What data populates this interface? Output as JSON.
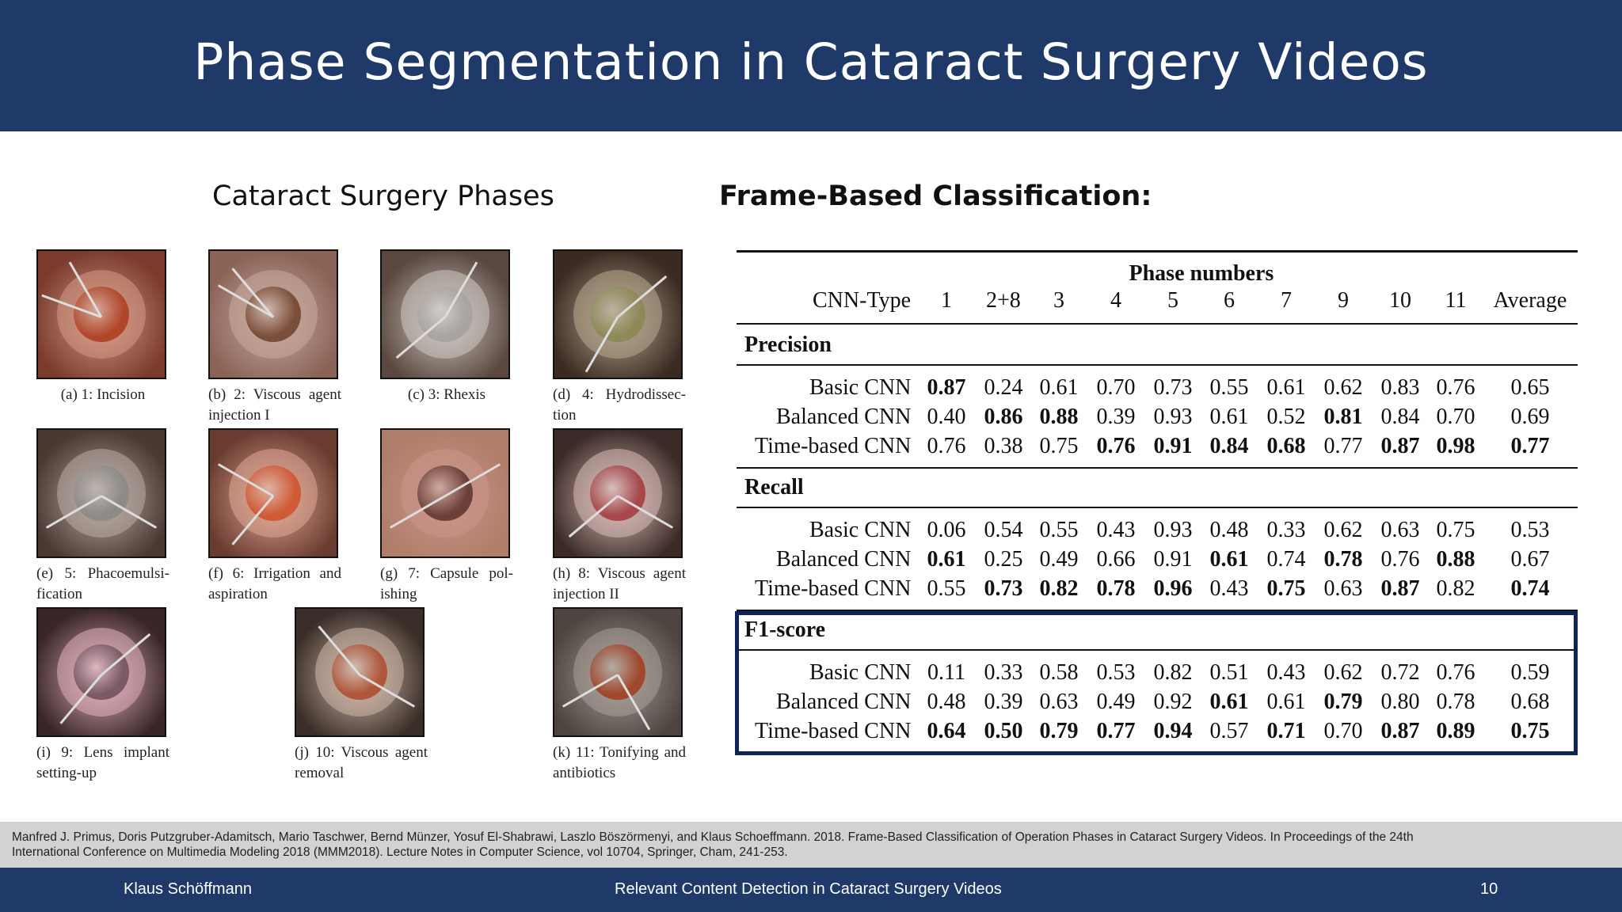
{
  "slide": {
    "title": "Phase Segmentation in Cataract Surgery Videos",
    "left_heading": "Cataract Surgery Phases",
    "right_heading": "Frame-Based Classification:"
  },
  "phases": [
    {
      "caption": "(a) 1: Incision",
      "colors": {
        "bg": "#7a3b2c",
        "eye": "#b0462a",
        "ring": "#d49a86"
      }
    },
    {
      "caption": "(b) 2: Viscous agent injection I",
      "colors": {
        "bg": "#8a6356",
        "eye": "#7a4e38",
        "ring": "#c9a9a0"
      }
    },
    {
      "caption": "(c) 3: Rhexis",
      "colors": {
        "bg": "#5a4840",
        "eye": "#a8a4a0",
        "ring": "#cfc8c2"
      }
    },
    {
      "caption": "(d) 4: Hydrodissec- tion",
      "colors": {
        "bg": "#3a2a22",
        "eye": "#8c8a58",
        "ring": "#b8a890"
      }
    },
    {
      "caption": "(e) 5: Phacoemulsi- fication",
      "colors": {
        "bg": "#4a3832",
        "eye": "#8d8a88",
        "ring": "#b9aca4"
      }
    },
    {
      "caption": "(f) 6: Irrigation and aspiration",
      "colors": {
        "bg": "#6a3c30",
        "eye": "#d05a36",
        "ring": "#e0a896"
      }
    },
    {
      "caption": "(g) 7: Capsule pol- ishing",
      "colors": {
        "bg": "#b07d68",
        "eye": "#6a4038",
        "ring": "#c8968a"
      }
    },
    {
      "caption": "(h) 8: Viscous agent injection II",
      "colors": {
        "bg": "#3c2a26",
        "eye": "#a8484a",
        "ring": "#d8bcb8"
      }
    },
    {
      "caption": "(i) 9: Lens implant setting-up",
      "colors": {
        "bg": "#3a2626",
        "eye": "#7a5a64",
        "ring": "#e0b0bc"
      }
    },
    {
      "caption": "(j) 10: Viscous agent removal",
      "colors": {
        "bg": "#3a2e28",
        "eye": "#b0563a",
        "ring": "#cfb8aa"
      }
    },
    {
      "caption": "(k) 11: Tonifying and antibiotics",
      "colors": {
        "bg": "#4e4440",
        "eye": "#a0482c",
        "ring": "#a89e98"
      }
    }
  ],
  "table": {
    "group_header": "Phase numbers",
    "columns": [
      "CNN-Type",
      "1",
      "2+8",
      "3",
      "4",
      "5",
      "6",
      "7",
      "9",
      "10",
      "11",
      "Average"
    ],
    "sections": [
      {
        "name": "Precision",
        "rows": [
          {
            "type": "Basic CNN",
            "values": [
              "0.87",
              "0.24",
              "0.61",
              "0.70",
              "0.73",
              "0.55",
              "0.61",
              "0.62",
              "0.83",
              "0.76",
              "0.65"
            ],
            "bold": [
              0
            ]
          },
          {
            "type": "Balanced CNN",
            "values": [
              "0.40",
              "0.86",
              "0.88",
              "0.39",
              "0.93",
              "0.61",
              "0.52",
              "0.81",
              "0.84",
              "0.70",
              "0.69"
            ],
            "bold": [
              1,
              2,
              7
            ]
          },
          {
            "type": "Time-based CNN",
            "values": [
              "0.76",
              "0.38",
              "0.75",
              "0.76",
              "0.91",
              "0.84",
              "0.68",
              "0.77",
              "0.87",
              "0.98",
              "0.77"
            ],
            "bold": [
              3,
              4,
              5,
              6,
              8,
              9,
              10
            ]
          }
        ]
      },
      {
        "name": "Recall",
        "rows": [
          {
            "type": "Basic CNN",
            "values": [
              "0.06",
              "0.54",
              "0.55",
              "0.43",
              "0.93",
              "0.48",
              "0.33",
              "0.62",
              "0.63",
              "0.75",
              "0.53"
            ],
            "bold": []
          },
          {
            "type": "Balanced CNN",
            "values": [
              "0.61",
              "0.25",
              "0.49",
              "0.66",
              "0.91",
              "0.61",
              "0.74",
              "0.78",
              "0.76",
              "0.88",
              "0.67"
            ],
            "bold": [
              0,
              5,
              7,
              9
            ]
          },
          {
            "type": "Time-based CNN",
            "values": [
              "0.55",
              "0.73",
              "0.82",
              "0.78",
              "0.96",
              "0.43",
              "0.75",
              "0.63",
              "0.87",
              "0.82",
              "0.74"
            ],
            "bold": [
              1,
              2,
              3,
              4,
              6,
              8,
              10
            ]
          }
        ]
      },
      {
        "name": "F1-score",
        "rows": [
          {
            "type": "Basic CNN",
            "values": [
              "0.11",
              "0.33",
              "0.58",
              "0.53",
              "0.82",
              "0.51",
              "0.43",
              "0.62",
              "0.72",
              "0.76",
              "0.59"
            ],
            "bold": []
          },
          {
            "type": "Balanced CNN",
            "values": [
              "0.48",
              "0.39",
              "0.63",
              "0.49",
              "0.92",
              "0.61",
              "0.61",
              "0.79",
              "0.80",
              "0.78",
              "0.68"
            ],
            "bold": [
              5,
              7
            ]
          },
          {
            "type": "Time-based CNN",
            "values": [
              "0.64",
              "0.50",
              "0.79",
              "0.77",
              "0.94",
              "0.57",
              "0.71",
              "0.70",
              "0.87",
              "0.89",
              "0.75"
            ],
            "bold": [
              0,
              1,
              2,
              3,
              4,
              6,
              8,
              9,
              10
            ]
          }
        ]
      }
    ],
    "highlight_color": "#0e2457"
  },
  "citation": {
    "line1": "Manfred J. Primus, Doris Putzgruber-Adamitsch, Mario Taschwer, Bernd Münzer, Yosuf El-Shabrawi, Laszlo Böszörmenyi, and Klaus Schoeffmann. 2018. Frame-Based Classification of Operation Phases in Cataract Surgery Videos. In Proceedings of the 24th",
    "line2": "International Conference on Multimedia Modeling 2018 (MMM2018). Lecture Notes in Computer Science, vol 10704, Springer, Cham, 241-253."
  },
  "footer": {
    "author": "Klaus Schöffmann",
    "talk_title": "Relevant Content Detection in Cataract Surgery Videos",
    "page_number": "10"
  },
  "theme": {
    "header_bg": "#1f3a68",
    "citation_bg": "#d2d2d2"
  }
}
